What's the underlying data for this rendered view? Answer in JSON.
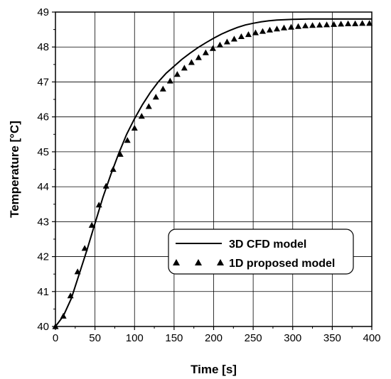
{
  "chart_data": {
    "type": "line",
    "title": "",
    "xlabel": "Time [s]",
    "ylabel": "Temperature [°C]",
    "xlim": [
      0,
      400
    ],
    "ylim": [
      40,
      49
    ],
    "xticks": [
      0,
      50,
      100,
      150,
      200,
      250,
      300,
      350,
      400
    ],
    "yticks": [
      40,
      41,
      42,
      43,
      44,
      45,
      46,
      47,
      48,
      49
    ],
    "grid": true,
    "legend_position": "lower-right",
    "series": [
      {
        "name": "3D CFD model",
        "style": "solid-line",
        "color": "#000000",
        "x": [
          0,
          10,
          20,
          30,
          40,
          50,
          60,
          70,
          80,
          90,
          100,
          110,
          120,
          130,
          140,
          150,
          160,
          170,
          180,
          190,
          200,
          210,
          220,
          230,
          240,
          250,
          260,
          270,
          280,
          290,
          300,
          320,
          340,
          360,
          380,
          400
        ],
        "y": [
          40.0,
          40.3,
          40.8,
          41.5,
          42.2,
          42.95,
          43.7,
          44.35,
          44.95,
          45.5,
          45.95,
          46.35,
          46.7,
          47.0,
          47.25,
          47.45,
          47.65,
          47.82,
          47.98,
          48.12,
          48.25,
          48.37,
          48.47,
          48.56,
          48.63,
          48.68,
          48.72,
          48.75,
          48.77,
          48.78,
          48.79,
          48.8,
          48.8,
          48.8,
          48.8,
          48.8
        ]
      },
      {
        "name": "1D proposed model",
        "style": "triangle-markers",
        "color": "#000000",
        "x": [
          0,
          10,
          19,
          28,
          37,
          46,
          55,
          64,
          73,
          82,
          91,
          100,
          109,
          118,
          127,
          136,
          145,
          154,
          163,
          172,
          181,
          190,
          199,
          208,
          217,
          226,
          235,
          244,
          253,
          262,
          271,
          280,
          289,
          298,
          307,
          316,
          325,
          334,
          343,
          352,
          361,
          370,
          379,
          388,
          397
        ],
        "y": [
          40.0,
          40.3,
          40.88,
          41.57,
          42.24,
          42.9,
          43.48,
          44.02,
          44.5,
          44.93,
          45.33,
          45.68,
          46.02,
          46.3,
          46.57,
          46.8,
          47.03,
          47.22,
          47.4,
          47.56,
          47.7,
          47.84,
          47.96,
          48.06,
          48.15,
          48.23,
          48.3,
          48.36,
          48.41,
          48.45,
          48.49,
          48.52,
          48.55,
          48.57,
          48.59,
          48.61,
          48.62,
          48.63,
          48.64,
          48.65,
          48.66,
          48.67,
          48.67,
          48.68,
          48.68
        ]
      }
    ]
  }
}
